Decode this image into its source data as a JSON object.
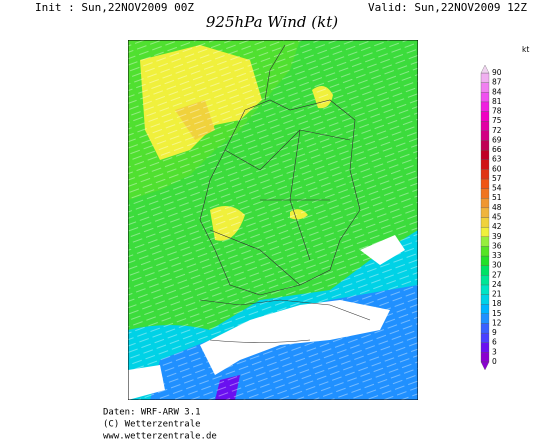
{
  "header": {
    "init": "Init : Sun,22NOV2009 00Z",
    "valid": "Valid: Sun,22NOV2009 12Z",
    "title": "925hPa Wind (kt)"
  },
  "colorbar": {
    "unit": "kt",
    "levels": [
      0,
      3,
      6,
      9,
      12,
      15,
      18,
      21,
      24,
      27,
      30,
      33,
      36,
      39,
      42,
      45,
      48,
      51,
      54,
      57,
      60,
      63,
      66,
      69,
      72,
      75,
      78,
      81,
      84,
      87,
      90
    ],
    "colors": [
      "#8a00d0",
      "#6a10f0",
      "#4a40ff",
      "#3a60ff",
      "#2090ff",
      "#00b4ff",
      "#00d2e6",
      "#00e4c4",
      "#00e696",
      "#00e264",
      "#22e028",
      "#54e424",
      "#96ee3c",
      "#f0f03c",
      "#f0d23c",
      "#f0b43c",
      "#f09630",
      "#f07420",
      "#f05414",
      "#e03412",
      "#d01414",
      "#c00024",
      "#c00054",
      "#d20082",
      "#e200a4",
      "#f000c2",
      "#f020e0",
      "#f050f0",
      "#f080f0",
      "#f0b0f0",
      "#f0d4f0"
    ]
  },
  "footer": {
    "lines": [
      "Daten: WRF-ARW 3.1",
      "(C) Wetterzentrale",
      "www.wetterzentrale.de"
    ]
  }
}
